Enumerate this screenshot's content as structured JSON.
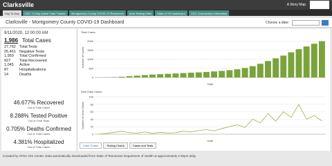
{
  "header": {
    "title": "Clarksville",
    "story_map": "A Story Map"
  },
  "tabs": [
    "Day To Day",
    "CDC 72-Day Active Case Tracker",
    "Montgomery County COVID-19 Resources",
    "Area Testing Sites",
    "State of TN Dashboard",
    "CDC Coronavirus Information"
  ],
  "dashboard": {
    "title": "Clarksville - Montgomery County COVID-19 Dashboard",
    "date_label": "Choose a date:"
  },
  "summary": {
    "date": "8/11/2020, 12:00:00 AM",
    "total_cases": {
      "value": "1,986",
      "label": "Total Cases"
    },
    "stats": [
      {
        "value": "27,762",
        "label": "Total Tests"
      },
      {
        "value": "25,461",
        "label": "Negative Tests"
      },
      {
        "value": "1,959",
        "label": "Total Confirmed"
      },
      {
        "value": "927",
        "label": "Total Recovered"
      },
      {
        "value": "1,045",
        "label": "Active"
      },
      {
        "value": "87",
        "label": "Hospitalizations"
      },
      {
        "value": "14",
        "label": "Deaths"
      }
    ]
  },
  "percentages": [
    {
      "value": "46.677% Recovered",
      "note": "Out of Total Cases"
    },
    {
      "value": "8.288% Tested Positive",
      "note": "Out of Total Tests"
    },
    {
      "value": "0.705% Deaths Confirmed",
      "note": "Out of Total Cases"
    },
    {
      "value": "4.381% Hospitalized",
      "note": "Out of Total Cases"
    }
  ],
  "chart_data": [
    {
      "type": "bar",
      "title": "Total Cases",
      "y_label": "Number of Cases",
      "x_label": "Date",
      "color": "#7aa33a",
      "ylim": [
        0,
        2200
      ],
      "yticks": [
        0,
        500,
        1000,
        1500,
        2000
      ],
      "values": [
        5,
        10,
        20,
        40,
        70,
        100,
        130,
        160,
        180,
        200,
        220,
        240,
        260,
        280,
        300,
        330,
        360,
        400,
        450,
        520,
        620,
        750,
        900,
        1050,
        1200,
        1380,
        1550,
        1700,
        1850,
        1986
      ]
    },
    {
      "type": "line",
      "title": "New Daily Cases",
      "y_label": "Number of New Cases",
      "x_label": "Date",
      "color": "#9bb040",
      "ylim": [
        0,
        100
      ],
      "yticks": [
        0,
        20,
        40,
        60,
        80,
        100
      ],
      "values": [
        0,
        2,
        5,
        8,
        4,
        3,
        6,
        2,
        5,
        3,
        4,
        8,
        6,
        10,
        12,
        9,
        15,
        20,
        25,
        18,
        40,
        30,
        55,
        35,
        60,
        45,
        80,
        40,
        50,
        35
      ]
    }
  ],
  "chart_tabs": [
    "Case Charts",
    "Testing Charts",
    "Cases and Tests"
  ],
  "footer": "Created by APSU GIS Center. Data automatically downloaded from State of Tennessee Department of Health at approximately 2:30pm daily."
}
